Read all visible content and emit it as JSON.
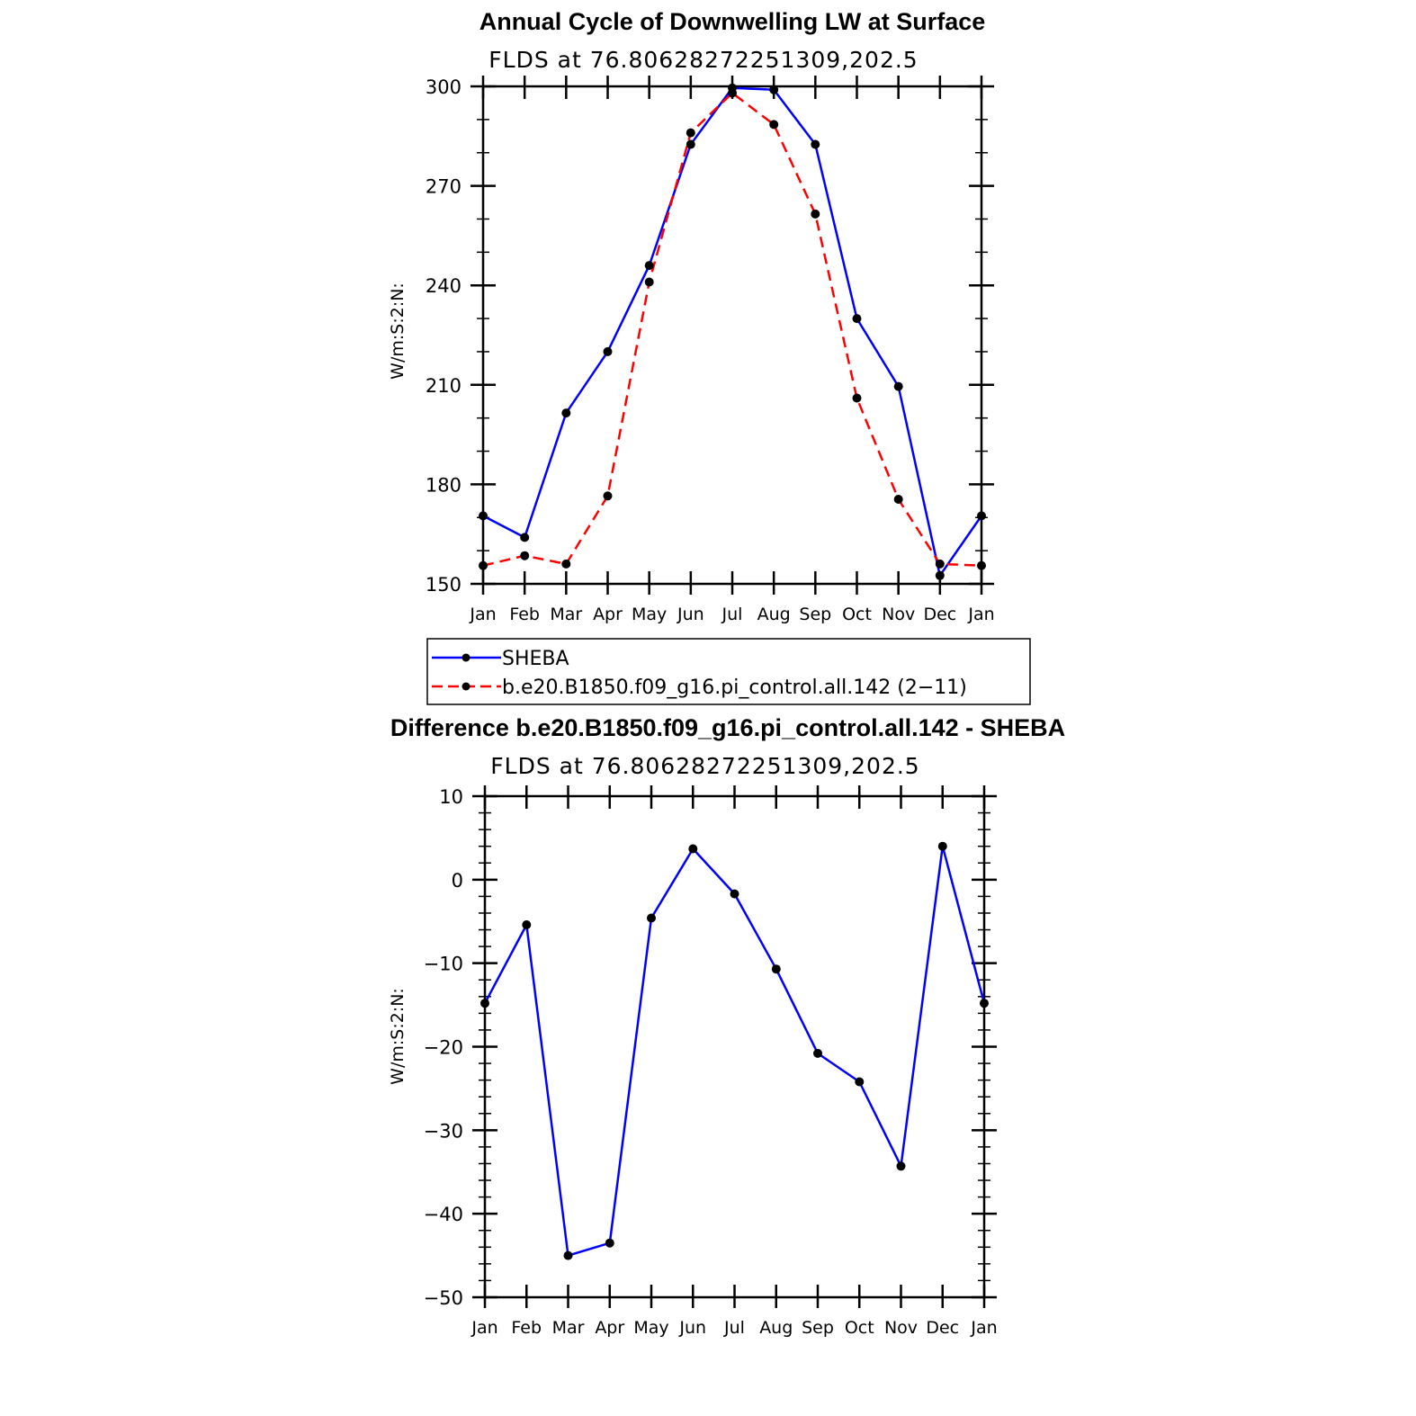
{
  "chart_data": [
    {
      "type": "line",
      "title": "Annual Cycle of Downwelling LW at Surface",
      "subtitle": "FLDS at 76.80628272251309,202.5",
      "ylabel": "W/m:S:2:N:",
      "xlabel": "",
      "categories": [
        "Jan",
        "Feb",
        "Mar",
        "Apr",
        "May",
        "Jun",
        "Jul",
        "Aug",
        "Sep",
        "Oct",
        "Nov",
        "Dec",
        "Jan"
      ],
      "ylim": [
        150,
        300
      ],
      "yticks": [
        150,
        180,
        210,
        240,
        270,
        300
      ],
      "grid": false,
      "legend_placement": "below",
      "series": [
        {
          "name": "SHEBA",
          "color": "#0000ff",
          "dash": "solid",
          "values": [
            170.5,
            164,
            201.5,
            220,
            246,
            282.5,
            299.5,
            299,
            282.5,
            230,
            209.5,
            152.5,
            170.5
          ]
        },
        {
          "name": "b.e20.B1850.f09_g16.pi_control.all.142 (2−11)",
          "color": "#ff0000",
          "dash": "dashed",
          "values": [
            155.5,
            158.5,
            156,
            176.5,
            241,
            286,
            298,
            288.5,
            261.5,
            206,
            175.5,
            156,
            155.5
          ]
        }
      ]
    },
    {
      "type": "line",
      "title": "Difference b.e20.B1850.f09_g16.pi_control.all.142 - SHEBA",
      "subtitle": "FLDS at 76.80628272251309,202.5",
      "ylabel": "W/m:S:2:N:",
      "xlabel": "",
      "categories": [
        "Jan",
        "Feb",
        "Mar",
        "Apr",
        "May",
        "Jun",
        "Jul",
        "Aug",
        "Sep",
        "Oct",
        "Nov",
        "Dec",
        "Jan"
      ],
      "ylim": [
        -50,
        10
      ],
      "yticks": [
        -50,
        -40,
        -30,
        -20,
        -10,
        0,
        10
      ],
      "grid": false,
      "series": [
        {
          "color": "#0000ff",
          "dash": "solid",
          "values": [
            -14.8,
            -5.4,
            -45,
            -43.5,
            -4.6,
            3.7,
            -1.7,
            -10.7,
            -20.8,
            -24.2,
            -34.3,
            4,
            -14.8
          ]
        }
      ]
    }
  ]
}
